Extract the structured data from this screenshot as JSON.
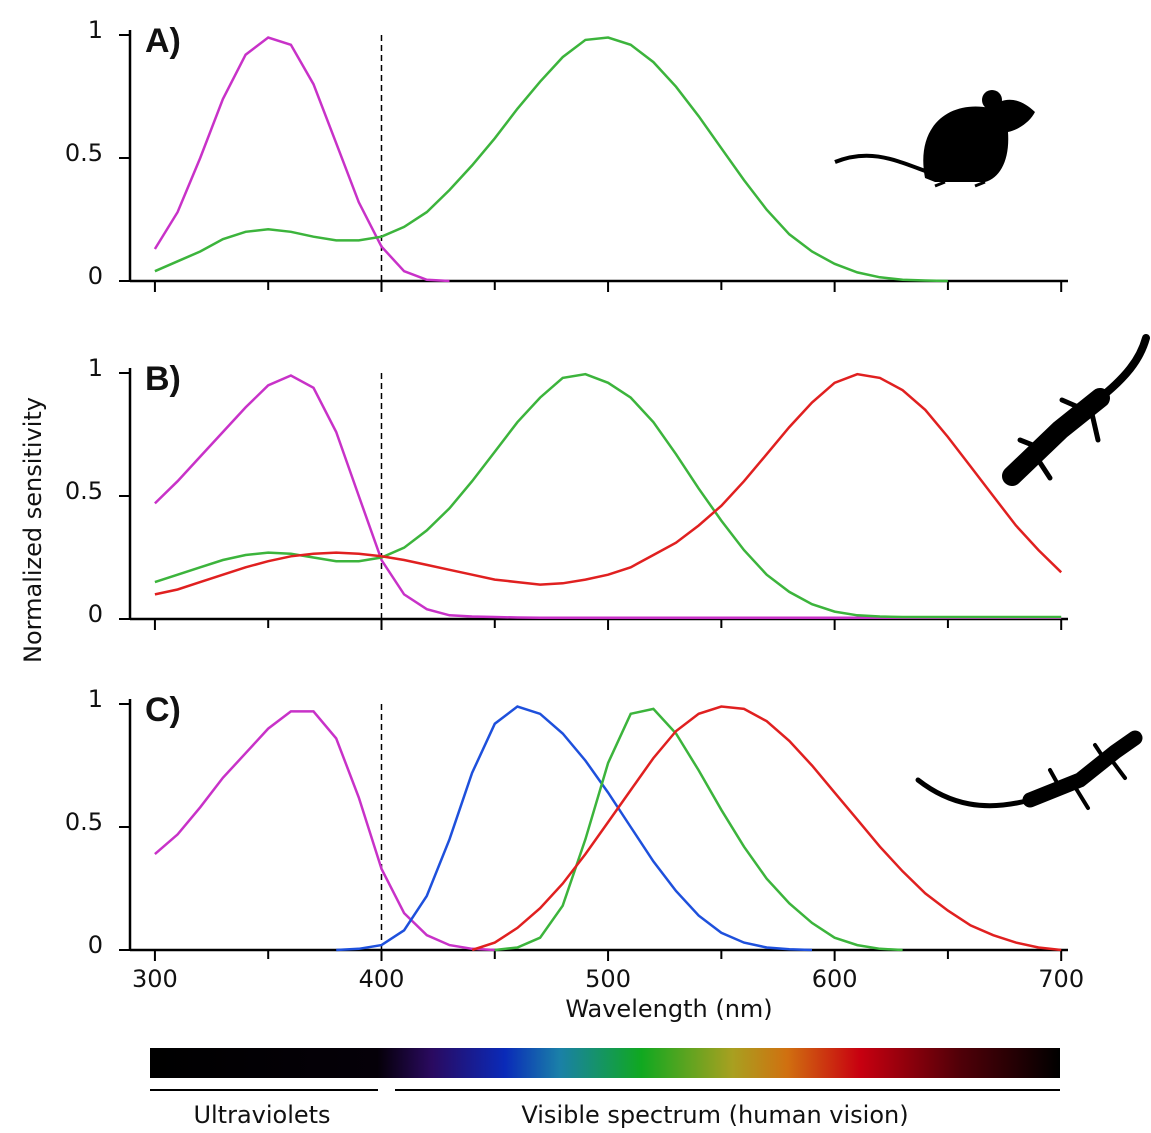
{
  "chart_data": [
    {
      "type": "line",
      "label": "A)",
      "xlim": [
        289,
        703
      ],
      "ylim": [
        0,
        1
      ],
      "yticks": [
        0,
        0.5,
        1
      ],
      "vline": 400,
      "x": [
        300,
        310,
        320,
        330,
        340,
        350,
        360,
        370,
        380,
        390,
        400,
        410,
        420,
        430,
        440,
        450,
        460,
        470,
        480,
        490,
        500,
        510,
        520,
        530,
        540,
        550,
        560,
        570,
        580,
        590,
        600,
        610,
        620,
        630,
        640,
        650,
        660,
        670,
        680,
        690,
        700
      ],
      "series": [
        {
          "color": "#c832c8",
          "values": [
            0.13,
            0.28,
            0.5,
            0.74,
            0.92,
            0.99,
            0.96,
            0.8,
            0.56,
            0.32,
            0.14,
            0.04,
            0.005,
            0,
            null,
            null,
            null,
            null,
            null,
            null,
            null,
            null,
            null,
            null,
            null,
            null,
            null,
            null,
            null,
            null,
            null,
            null,
            null,
            null,
            null,
            null,
            null,
            null,
            null,
            null,
            null
          ]
        },
        {
          "color": "#3cb43c",
          "values": [
            0.04,
            0.08,
            0.12,
            0.17,
            0.2,
            0.21,
            0.2,
            0.18,
            0.165,
            0.165,
            0.18,
            0.22,
            0.28,
            0.37,
            0.47,
            0.58,
            0.7,
            0.81,
            0.91,
            0.98,
            0.99,
            0.96,
            0.89,
            0.79,
            0.67,
            0.54,
            0.41,
            0.29,
            0.19,
            0.12,
            0.07,
            0.035,
            0.015,
            0.005,
            0.002,
            0,
            null,
            null,
            null,
            null,
            null
          ]
        }
      ]
    },
    {
      "type": "line",
      "label": "B)",
      "ylabel": "Normalized sensitivity",
      "xlim": [
        289,
        703
      ],
      "ylim": [
        0,
        1
      ],
      "yticks": [
        0,
        0.5,
        1
      ],
      "vline": 400,
      "x": [
        300,
        310,
        320,
        330,
        340,
        350,
        360,
        370,
        380,
        390,
        400,
        410,
        420,
        430,
        440,
        450,
        460,
        470,
        480,
        490,
        500,
        510,
        520,
        530,
        540,
        550,
        560,
        570,
        580,
        590,
        600,
        610,
        620,
        630,
        640,
        650,
        660,
        670,
        680,
        690,
        700
      ],
      "series": [
        {
          "color": "#c832c8",
          "values": [
            0.47,
            0.56,
            0.66,
            0.76,
            0.86,
            0.95,
            0.99,
            0.94,
            0.76,
            0.5,
            0.24,
            0.1,
            0.04,
            0.015,
            0.01,
            0.008,
            0.006,
            0.005,
            0.005,
            0.005,
            0.005,
            0.005,
            0.005,
            0.005,
            0.005,
            0.005,
            0.005,
            0.005,
            0.005,
            0.005,
            0.005,
            0.005,
            0.005,
            0.005,
            0.005,
            0.005,
            0.005,
            0.005,
            0.005,
            0.005,
            0.005
          ]
        },
        {
          "color": "#3cb43c",
          "values": [
            0.15,
            0.18,
            0.21,
            0.24,
            0.26,
            0.27,
            0.265,
            0.25,
            0.235,
            0.235,
            0.25,
            0.29,
            0.36,
            0.45,
            0.56,
            0.68,
            0.8,
            0.9,
            0.98,
            0.995,
            0.96,
            0.9,
            0.8,
            0.67,
            0.53,
            0.4,
            0.28,
            0.18,
            0.11,
            0.06,
            0.03,
            0.015,
            0.01,
            0.008,
            0.008,
            0.008,
            0.008,
            0.008,
            0.008,
            0.008,
            0.008
          ]
        },
        {
          "color": "#e02020",
          "values": [
            0.1,
            0.12,
            0.15,
            0.18,
            0.21,
            0.235,
            0.255,
            0.265,
            0.27,
            0.265,
            0.255,
            0.24,
            0.22,
            0.2,
            0.18,
            0.16,
            0.15,
            0.14,
            0.145,
            0.16,
            0.18,
            0.21,
            0.26,
            0.31,
            0.38,
            0.46,
            0.56,
            0.67,
            0.78,
            0.88,
            0.96,
            0.995,
            0.98,
            0.93,
            0.85,
            0.74,
            0.62,
            0.5,
            0.38,
            0.28,
            0.19
          ]
        }
      ]
    },
    {
      "type": "line",
      "label": "C)",
      "xlabel": "Wavelength (nm)",
      "xlim": [
        289,
        703
      ],
      "ylim": [
        0,
        1
      ],
      "yticks": [
        0,
        0.5,
        1
      ],
      "vline": 400,
      "xticks": [
        300,
        400,
        500,
        600,
        700
      ],
      "xminor": [
        350,
        450,
        550,
        650
      ],
      "x": [
        300,
        310,
        320,
        330,
        340,
        350,
        360,
        370,
        380,
        390,
        400,
        410,
        420,
        430,
        440,
        450,
        460,
        470,
        480,
        490,
        500,
        510,
        520,
        530,
        540,
        550,
        560,
        570,
        580,
        590,
        600,
        610,
        620,
        630,
        640,
        650,
        660,
        670,
        680,
        690,
        700
      ],
      "series": [
        {
          "color": "#c832c8",
          "values": [
            0.39,
            0.47,
            0.58,
            0.7,
            0.8,
            0.9,
            0.97,
            0.97,
            0.86,
            0.62,
            0.33,
            0.15,
            0.06,
            0.02,
            0.005,
            0,
            null,
            null,
            null,
            null,
            null,
            null,
            null,
            null,
            null,
            null,
            null,
            null,
            null,
            null,
            null,
            null,
            null,
            null,
            null,
            null,
            null,
            null,
            null,
            null,
            null
          ]
        },
        {
          "color": "#1e50dc",
          "values": [
            null,
            null,
            null,
            null,
            null,
            null,
            null,
            null,
            0,
            0.005,
            0.02,
            0.08,
            0.22,
            0.45,
            0.72,
            0.92,
            0.99,
            0.96,
            0.88,
            0.77,
            0.64,
            0.5,
            0.36,
            0.24,
            0.14,
            0.07,
            0.03,
            0.01,
            0.003,
            0,
            null,
            null,
            null,
            null,
            null,
            null,
            null,
            null,
            null,
            null,
            null
          ]
        },
        {
          "color": "#3cb43c",
          "values": [
            null,
            null,
            null,
            null,
            null,
            null,
            null,
            null,
            null,
            null,
            null,
            null,
            null,
            null,
            null,
            0,
            0.01,
            0.05,
            0.18,
            0.45,
            0.76,
            0.96,
            0.98,
            0.88,
            0.73,
            0.57,
            0.42,
            0.29,
            0.19,
            0.11,
            0.05,
            0.02,
            0.005,
            0,
            null,
            null,
            null,
            null,
            null,
            null,
            null
          ]
        },
        {
          "color": "#e02020",
          "values": [
            null,
            null,
            null,
            null,
            null,
            null,
            null,
            null,
            null,
            null,
            null,
            null,
            null,
            null,
            0,
            0.03,
            0.09,
            0.17,
            0.27,
            0.39,
            0.52,
            0.65,
            0.78,
            0.89,
            0.96,
            0.99,
            0.98,
            0.93,
            0.85,
            0.75,
            0.64,
            0.53,
            0.42,
            0.32,
            0.23,
            0.16,
            0.1,
            0.06,
            0.03,
            0.01,
            0
          ]
        }
      ]
    }
  ],
  "spectrum_bar": {
    "labels": [
      "Ultraviolets",
      "Visible spectrum (human vision)"
    ]
  }
}
